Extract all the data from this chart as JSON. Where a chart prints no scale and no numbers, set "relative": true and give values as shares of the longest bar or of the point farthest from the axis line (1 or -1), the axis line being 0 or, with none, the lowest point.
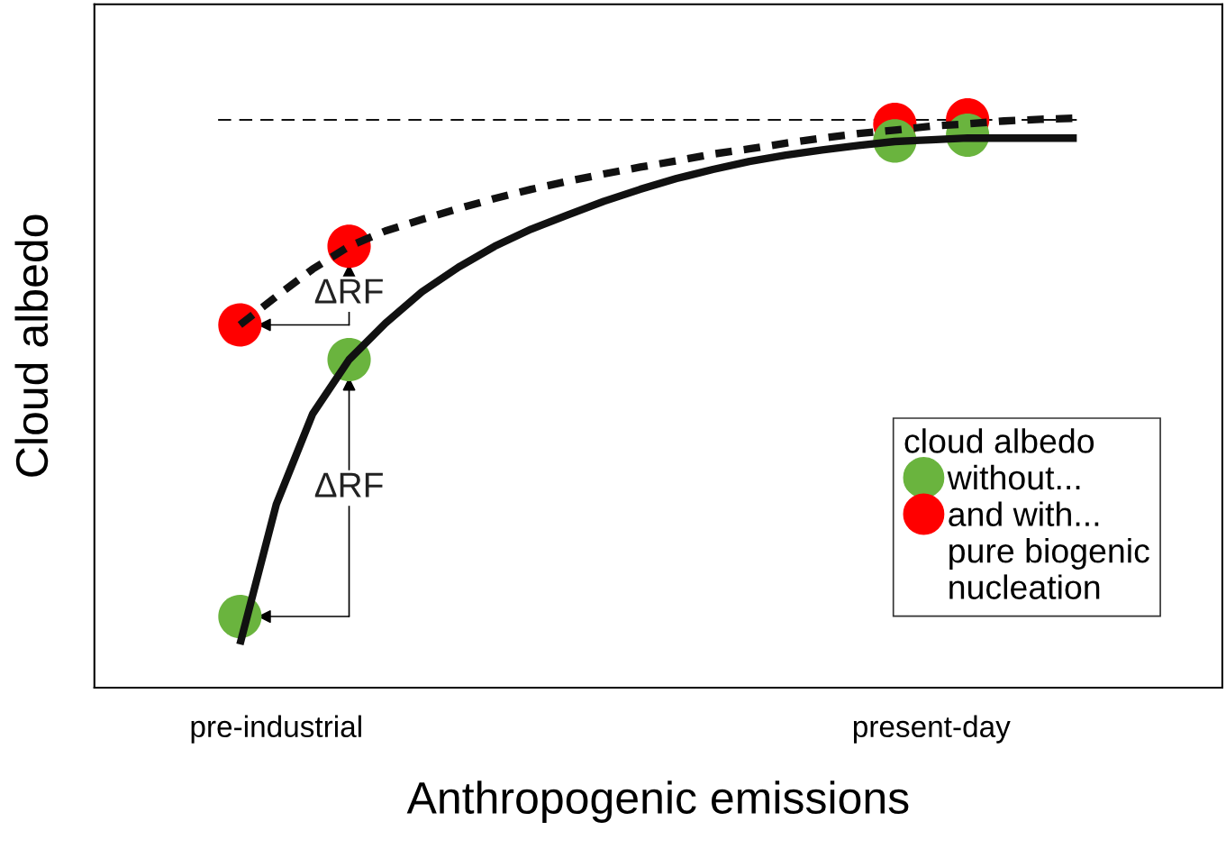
{
  "chart_data": {
    "type": "line",
    "relative": true,
    "xlabel": "Anthropogenic emissions",
    "ylabel": "Cloud albedo",
    "categories": [
      null,
      "pre-industrial",
      null,
      null,
      null,
      null,
      null,
      null,
      null,
      null,
      null,
      null,
      null,
      null,
      null,
      null,
      null,
      null,
      null,
      "present-day",
      null,
      null,
      null,
      null
    ],
    "series": [
      {
        "color": "#111111",
        "line_style": "solid",
        "values": [
          0.076,
          0.322,
          0.481,
          0.576,
          0.64,
          0.695,
          0.738,
          0.775,
          0.805,
          0.83,
          0.854,
          0.875,
          0.894,
          0.91,
          0.924,
          0.935,
          0.944,
          0.952,
          0.959,
          0.962,
          0.965,
          0.965,
          0.965,
          0.965
        ]
      },
      {
        "color": "#111111",
        "line_style": "dashed",
        "values": [
          0.637,
          0.687,
          0.735,
          0.775,
          0.802,
          0.822,
          0.841,
          0.859,
          0.875,
          0.889,
          0.902,
          0.914,
          0.925,
          0.937,
          0.946,
          0.956,
          0.965,
          0.973,
          0.979,
          0.986,
          0.99,
          0.995,
          0.998,
          1.0
        ]
      },
      {
        "type": "scatter",
        "name": "without...",
        "color": "#6ab43e",
        "marker": "circle",
        "values": [
          0.125,
          null,
          null,
          0.576,
          null,
          null,
          null,
          null,
          null,
          null,
          null,
          null,
          null,
          null,
          null,
          null,
          null,
          null,
          0.96,
          null,
          0.97,
          null,
          null,
          null
        ]
      },
      {
        "type": "scatter",
        "name": "and with...",
        "color": "#ff0000",
        "marker": "circle",
        "values": [
          0.637,
          null,
          null,
          0.775,
          null,
          null,
          null,
          null,
          null,
          null,
          null,
          null,
          null,
          null,
          null,
          null,
          null,
          null,
          0.989,
          null,
          0.997,
          null,
          null,
          null
        ]
      }
    ],
    "ref_lines": [
      {
        "axis": "y",
        "value": 0.997,
        "color": "#111111",
        "line_style": "dashed"
      }
    ],
    "legend": "bottom right",
    "legend_title": "cloud albedo",
    "annotations": [
      "ΔRF",
      "ΔRF",
      "pure biogenic\nnucleation"
    ]
  }
}
